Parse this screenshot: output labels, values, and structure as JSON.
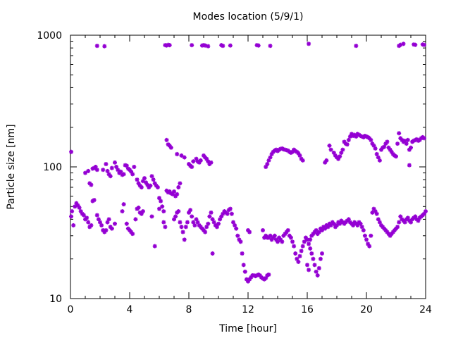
{
  "chart_data": {
    "type": "scatter",
    "title": "Modes location (5/9/1)",
    "xlabel": "Time [hour]",
    "ylabel": "Particle size [nm]",
    "xlim": [
      0,
      24
    ],
    "ylim": [
      10,
      1000
    ],
    "yscale": "log",
    "xticks": [
      0,
      4,
      8,
      12,
      16,
      20,
      24
    ],
    "xtick_labels": [
      "0",
      "4",
      "8",
      "12",
      "16",
      "20",
      "24"
    ],
    "yticks": [
      10,
      100,
      1000
    ],
    "ytick_labels": [
      "10",
      "100",
      "1000"
    ],
    "grid": false,
    "legend": "none",
    "marker_color": "#9400d3",
    "points": [
      [
        0.05,
        130
      ],
      [
        0.05,
        42
      ],
      [
        0.1,
        46
      ],
      [
        0.2,
        36
      ],
      [
        0.3,
        50
      ],
      [
        0.4,
        53
      ],
      [
        0.5,
        51
      ],
      [
        0.6,
        49
      ],
      [
        0.7,
        46
      ],
      [
        0.8,
        44
      ],
      [
        0.9,
        43
      ],
      [
        1.0,
        40
      ],
      [
        1.1,
        41
      ],
      [
        1.2,
        38
      ],
      [
        1.3,
        35
      ],
      [
        1.4,
        36
      ],
      [
        1.0,
        90
      ],
      [
        1.2,
        93
      ],
      [
        1.3,
        75
      ],
      [
        1.4,
        73
      ],
      [
        1.5,
        97
      ],
      [
        1.6,
        98
      ],
      [
        1.7,
        100
      ],
      [
        1.8,
        95
      ],
      [
        1.5,
        55
      ],
      [
        1.6,
        56
      ],
      [
        1.8,
        43
      ],
      [
        1.9,
        40
      ],
      [
        2.0,
        38
      ],
      [
        2.1,
        36
      ],
      [
        2.2,
        33
      ],
      [
        2.3,
        32
      ],
      [
        2.4,
        33
      ],
      [
        2.5,
        38
      ],
      [
        2.6,
        40
      ],
      [
        2.7,
        35
      ],
      [
        2.8,
        34
      ],
      [
        3.0,
        37
      ],
      [
        2.2,
        95
      ],
      [
        2.4,
        105
      ],
      [
        2.5,
        93
      ],
      [
        2.6,
        88
      ],
      [
        2.7,
        85
      ],
      [
        2.8,
        98
      ],
      [
        3.0,
        108
      ],
      [
        3.1,
        100
      ],
      [
        3.2,
        95
      ],
      [
        3.3,
        90
      ],
      [
        3.4,
        92
      ],
      [
        3.5,
        87
      ],
      [
        3.6,
        88
      ],
      [
        3.7,
        103
      ],
      [
        3.8,
        102
      ],
      [
        3.9,
        97
      ],
      [
        4.0,
        95
      ],
      [
        4.1,
        92
      ],
      [
        4.2,
        88
      ],
      [
        4.3,
        100
      ],
      [
        3.5,
        46
      ],
      [
        3.6,
        52
      ],
      [
        3.8,
        37
      ],
      [
        3.9,
        34
      ],
      [
        4.0,
        33
      ],
      [
        4.1,
        32
      ],
      [
        4.2,
        31
      ],
      [
        4.4,
        40
      ],
      [
        4.5,
        48
      ],
      [
        4.6,
        49
      ],
      [
        4.7,
        45
      ],
      [
        4.8,
        44
      ],
      [
        4.9,
        46
      ],
      [
        4.5,
        80
      ],
      [
        4.6,
        75
      ],
      [
        4.7,
        72
      ],
      [
        4.8,
        70
      ],
      [
        4.9,
        78
      ],
      [
        5.0,
        82
      ],
      [
        5.1,
        76
      ],
      [
        5.2,
        73
      ],
      [
        5.3,
        70
      ],
      [
        5.4,
        72
      ],
      [
        5.5,
        85
      ],
      [
        5.6,
        80
      ],
      [
        5.7,
        75
      ],
      [
        5.8,
        72
      ],
      [
        5.9,
        70
      ],
      [
        6.0,
        58
      ],
      [
        6.1,
        55
      ],
      [
        6.2,
        50
      ],
      [
        6.3,
        46
      ],
      [
        5.5,
        42
      ],
      [
        5.7,
        25
      ],
      [
        6.0,
        48
      ],
      [
        6.3,
        38
      ],
      [
        6.4,
        35
      ],
      [
        6.5,
        160
      ],
      [
        6.6,
        148
      ],
      [
        6.7,
        145
      ],
      [
        6.8,
        140
      ],
      [
        6.5,
        66
      ],
      [
        6.6,
        64
      ],
      [
        6.7,
        65
      ],
      [
        6.8,
        63
      ],
      [
        6.9,
        62
      ],
      [
        7.0,
        65
      ],
      [
        7.1,
        60
      ],
      [
        7.2,
        62
      ],
      [
        7.3,
        70
      ],
      [
        7.4,
        75
      ],
      [
        7.0,
        40
      ],
      [
        7.1,
        42
      ],
      [
        7.2,
        45
      ],
      [
        7.3,
        46
      ],
      [
        7.4,
        38
      ],
      [
        7.5,
        35
      ],
      [
        7.6,
        32
      ],
      [
        7.7,
        28
      ],
      [
        7.8,
        35
      ],
      [
        7.9,
        38
      ],
      [
        8.0,
        45
      ],
      [
        8.1,
        47
      ],
      [
        8.2,
        42
      ],
      [
        8.3,
        38
      ],
      [
        8.4,
        36
      ],
      [
        7.2,
        125
      ],
      [
        7.5,
        122
      ],
      [
        7.7,
        118
      ],
      [
        8.0,
        105
      ],
      [
        8.1,
        102
      ],
      [
        8.2,
        100
      ],
      [
        8.3,
        110
      ],
      [
        8.5,
        115
      ],
      [
        8.6,
        110
      ],
      [
        8.7,
        108
      ],
      [
        8.8,
        112
      ],
      [
        9.0,
        122
      ],
      [
        9.1,
        118
      ],
      [
        9.2,
        115
      ],
      [
        9.3,
        110
      ],
      [
        9.4,
        105
      ],
      [
        9.5,
        108
      ],
      [
        8.5,
        40
      ],
      [
        8.6,
        38
      ],
      [
        8.7,
        36
      ],
      [
        8.8,
        35
      ],
      [
        8.9,
        34
      ],
      [
        9.0,
        33
      ],
      [
        9.1,
        32
      ],
      [
        9.2,
        35
      ],
      [
        9.3,
        37
      ],
      [
        9.4,
        42
      ],
      [
        9.5,
        45
      ],
      [
        9.6,
        40
      ],
      [
        9.7,
        38
      ],
      [
        9.8,
        36
      ],
      [
        9.9,
        35
      ],
      [
        10.0,
        37
      ],
      [
        10.1,
        40
      ],
      [
        10.2,
        42
      ],
      [
        10.3,
        44
      ],
      [
        10.4,
        46
      ],
      [
        10.5,
        45
      ],
      [
        10.6,
        44
      ],
      [
        10.7,
        47
      ],
      [
        10.8,
        48
      ],
      [
        10.9,
        44
      ],
      [
        9.6,
        22
      ],
      [
        11.0,
        38
      ],
      [
        11.1,
        36
      ],
      [
        11.2,
        34
      ],
      [
        11.3,
        30
      ],
      [
        11.4,
        28
      ],
      [
        11.5,
        27
      ],
      [
        11.6,
        22
      ],
      [
        11.7,
        18
      ],
      [
        11.8,
        16
      ],
      [
        11.9,
        14
      ],
      [
        12.0,
        13.5
      ],
      [
        12.1,
        14
      ],
      [
        12.2,
        14.5
      ],
      [
        12.3,
        15
      ],
      [
        12.4,
        15
      ],
      [
        12.5,
        14.8
      ],
      [
        12.6,
        15
      ],
      [
        12.7,
        15.2
      ],
      [
        12.8,
        15
      ],
      [
        12.9,
        14.5
      ],
      [
        13.0,
        14.2
      ],
      [
        13.1,
        14
      ],
      [
        13.2,
        14.3
      ],
      [
        13.3,
        15
      ],
      [
        13.4,
        15.2
      ],
      [
        12.0,
        33
      ],
      [
        12.1,
        32
      ],
      [
        13.0,
        33
      ],
      [
        13.1,
        29
      ],
      [
        13.2,
        30
      ],
      [
        13.3,
        29
      ],
      [
        13.4,
        29
      ],
      [
        13.5,
        30
      ],
      [
        13.6,
        28
      ],
      [
        13.7,
        29
      ],
      [
        13.8,
        30
      ],
      [
        13.9,
        28
      ],
      [
        14.0,
        27
      ],
      [
        14.1,
        29
      ],
      [
        14.2,
        28
      ],
      [
        14.3,
        27
      ],
      [
        14.4,
        30
      ],
      [
        14.5,
        31
      ],
      [
        14.6,
        32
      ],
      [
        14.7,
        33
      ],
      [
        14.8,
        30
      ],
      [
        14.9,
        29
      ],
      [
        15.0,
        27
      ],
      [
        15.1,
        25
      ],
      [
        15.2,
        22
      ],
      [
        15.3,
        20
      ],
      [
        15.4,
        19
      ],
      [
        15.5,
        21
      ],
      [
        15.6,
        23
      ],
      [
        15.7,
        25
      ],
      [
        15.8,
        27
      ],
      [
        15.9,
        29
      ],
      [
        16.0,
        28
      ],
      [
        16.1,
        26
      ],
      [
        16.2,
        24
      ],
      [
        16.3,
        22
      ],
      [
        16.4,
        20
      ],
      [
        16.5,
        18
      ],
      [
        16.6,
        16
      ],
      [
        16.7,
        15
      ],
      [
        16.8,
        17
      ],
      [
        16.9,
        20
      ],
      [
        17.0,
        22
      ],
      [
        16.0,
        18
      ],
      [
        16.1,
        16.5
      ],
      [
        16.2,
        28
      ],
      [
        16.3,
        30
      ],
      [
        16.4,
        31
      ],
      [
        16.5,
        32
      ],
      [
        16.6,
        33
      ],
      [
        16.7,
        31
      ],
      [
        16.8,
        32
      ],
      [
        16.9,
        34
      ],
      [
        17.0,
        33
      ],
      [
        17.1,
        35
      ],
      [
        17.2,
        34
      ],
      [
        17.3,
        36
      ],
      [
        17.4,
        35
      ],
      [
        17.5,
        37
      ],
      [
        13.2,
        100
      ],
      [
        13.3,
        105
      ],
      [
        13.4,
        112
      ],
      [
        13.5,
        118
      ],
      [
        13.6,
        125
      ],
      [
        13.7,
        130
      ],
      [
        13.8,
        133
      ],
      [
        13.9,
        135
      ],
      [
        14.0,
        132
      ],
      [
        14.1,
        135
      ],
      [
        14.2,
        137
      ],
      [
        14.3,
        138
      ],
      [
        14.4,
        136
      ],
      [
        14.5,
        135
      ],
      [
        14.6,
        134
      ],
      [
        14.7,
        133
      ],
      [
        14.8,
        130
      ],
      [
        14.9,
        128
      ],
      [
        15.0,
        130
      ],
      [
        15.1,
        135
      ],
      [
        15.2,
        132
      ],
      [
        15.3,
        130
      ],
      [
        15.4,
        127
      ],
      [
        15.5,
        122
      ],
      [
        15.6,
        115
      ],
      [
        15.7,
        112
      ],
      [
        17.2,
        108
      ],
      [
        17.3,
        112
      ],
      [
        17.5,
        145
      ],
      [
        17.6,
        135
      ],
      [
        17.8,
        128
      ],
      [
        17.9,
        122
      ],
      [
        18.0,
        118
      ],
      [
        18.1,
        115
      ],
      [
        18.2,
        120
      ],
      [
        18.3,
        128
      ],
      [
        18.4,
        135
      ],
      [
        18.5,
        155
      ],
      [
        18.6,
        150
      ],
      [
        18.7,
        148
      ],
      [
        18.8,
        160
      ],
      [
        18.9,
        170
      ],
      [
        19.0,
        178
      ],
      [
        19.1,
        172
      ],
      [
        19.2,
        175
      ],
      [
        19.3,
        170
      ],
      [
        19.4,
        178
      ],
      [
        19.5,
        175
      ],
      [
        19.6,
        172
      ],
      [
        19.7,
        170
      ],
      [
        19.8,
        168
      ],
      [
        19.9,
        172
      ],
      [
        20.0,
        170
      ],
      [
        20.1,
        168
      ],
      [
        20.2,
        165
      ],
      [
        20.3,
        160
      ],
      [
        20.4,
        150
      ],
      [
        20.5,
        145
      ],
      [
        20.6,
        138
      ],
      [
        20.7,
        125
      ],
      [
        20.8,
        118
      ],
      [
        20.9,
        112
      ],
      [
        21.0,
        135
      ],
      [
        21.1,
        140
      ],
      [
        21.2,
        142
      ],
      [
        21.3,
        150
      ],
      [
        21.4,
        155
      ],
      [
        21.5,
        140
      ],
      [
        21.6,
        135
      ],
      [
        21.7,
        130
      ],
      [
        21.8,
        125
      ],
      [
        21.9,
        122
      ],
      [
        22.0,
        120
      ],
      [
        22.1,
        150
      ],
      [
        22.2,
        180
      ],
      [
        22.3,
        165
      ],
      [
        22.4,
        160
      ],
      [
        22.5,
        155
      ],
      [
        22.6,
        158
      ],
      [
        22.7,
        150
      ],
      [
        22.8,
        160
      ],
      [
        22.9,
        135
      ],
      [
        23.0,
        140
      ],
      [
        23.1,
        155
      ],
      [
        23.2,
        158
      ],
      [
        23.3,
        160
      ],
      [
        23.4,
        162
      ],
      [
        23.5,
        158
      ],
      [
        23.6,
        160
      ],
      [
        23.7,
        165
      ],
      [
        23.8,
        168
      ],
      [
        23.9,
        165
      ],
      [
        22.9,
        103
      ],
      [
        17.6,
        36
      ],
      [
        17.7,
        38
      ],
      [
        17.8,
        37
      ],
      [
        17.9,
        35
      ],
      [
        18.0,
        36
      ],
      [
        18.1,
        38
      ],
      [
        18.2,
        37
      ],
      [
        18.3,
        39
      ],
      [
        18.4,
        38
      ],
      [
        18.5,
        37
      ],
      [
        18.6,
        38
      ],
      [
        18.7,
        39
      ],
      [
        18.8,
        40
      ],
      [
        18.9,
        38
      ],
      [
        19.0,
        37
      ],
      [
        19.1,
        36
      ],
      [
        19.2,
        38
      ],
      [
        19.3,
        37
      ],
      [
        19.4,
        36
      ],
      [
        19.5,
        38
      ],
      [
        19.6,
        37
      ],
      [
        19.7,
        35
      ],
      [
        19.8,
        33
      ],
      [
        19.9,
        30
      ],
      [
        20.0,
        28
      ],
      [
        20.1,
        26
      ],
      [
        20.2,
        25
      ],
      [
        20.3,
        30
      ],
      [
        20.4,
        45
      ],
      [
        20.5,
        48
      ],
      [
        20.6,
        46
      ],
      [
        20.7,
        44
      ],
      [
        20.8,
        40
      ],
      [
        20.9,
        38
      ],
      [
        21.0,
        36
      ],
      [
        21.1,
        35
      ],
      [
        21.2,
        34
      ],
      [
        21.3,
        33
      ],
      [
        21.4,
        32
      ],
      [
        21.5,
        31
      ],
      [
        21.6,
        30
      ],
      [
        21.7,
        31
      ],
      [
        21.8,
        32
      ],
      [
        21.9,
        33
      ],
      [
        22.0,
        34
      ],
      [
        22.1,
        35
      ],
      [
        22.2,
        38
      ],
      [
        22.3,
        42
      ],
      [
        22.4,
        40
      ],
      [
        22.5,
        39
      ],
      [
        22.6,
        38
      ],
      [
        22.7,
        40
      ],
      [
        22.8,
        41
      ],
      [
        22.9,
        39
      ],
      [
        23.0,
        38
      ],
      [
        23.1,
        40
      ],
      [
        23.2,
        41
      ],
      [
        23.3,
        42
      ],
      [
        23.4,
        40
      ],
      [
        23.5,
        39
      ],
      [
        23.6,
        41
      ],
      [
        23.7,
        42
      ],
      [
        23.8,
        43
      ],
      [
        23.9,
        44
      ],
      [
        24.0,
        46
      ],
      [
        1.8,
        830
      ],
      [
        2.3,
        825
      ],
      [
        6.4,
        840
      ],
      [
        6.5,
        835
      ],
      [
        6.6,
        845
      ],
      [
        6.7,
        840
      ],
      [
        8.2,
        840
      ],
      [
        8.9,
        835
      ],
      [
        9.0,
        840
      ],
      [
        9.1,
        835
      ],
      [
        9.3,
        825
      ],
      [
        10.2,
        840
      ],
      [
        10.3,
        830
      ],
      [
        10.8,
        835
      ],
      [
        12.6,
        840
      ],
      [
        12.7,
        835
      ],
      [
        13.5,
        830
      ],
      [
        16.1,
        860
      ],
      [
        19.3,
        830
      ],
      [
        22.2,
        830
      ],
      [
        22.3,
        845
      ],
      [
        22.5,
        860
      ],
      [
        23.2,
        850
      ],
      [
        23.3,
        845
      ],
      [
        23.8,
        850
      ],
      [
        23.9,
        845
      ]
    ]
  }
}
